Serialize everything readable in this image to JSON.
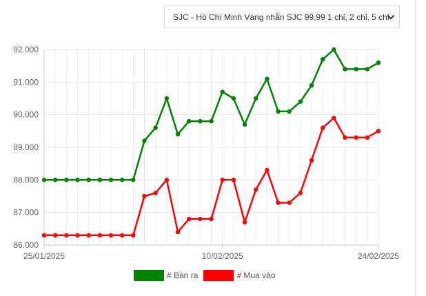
{
  "selector": {
    "selected": "SJC - Hồ Chí Minh Vàng nhẫn SJC 99,99 1 chỉ, 2 chỉ, 5 chỉ",
    "icon": "chevron-down-icon"
  },
  "legend": {
    "sell_label": "# Bán ra",
    "buy_label": "# Mua vào"
  },
  "chart_data": {
    "type": "line",
    "title": "",
    "xlabel": "",
    "ylabel": "",
    "x": [
      "25/01/2025",
      "26/01/2025",
      "27/01/2025",
      "28/01/2025",
      "29/01/2025",
      "30/01/2025",
      "31/01/2025",
      "01/02/2025",
      "02/02/2025",
      "03/02/2025",
      "04/02/2025",
      "05/02/2025",
      "06/02/2025",
      "07/02/2025",
      "08/02/2025",
      "09/02/2025",
      "10/02/2025",
      "11/02/2025",
      "12/02/2025",
      "13/02/2025",
      "14/02/2025",
      "15/02/2025",
      "16/02/2025",
      "17/02/2025",
      "18/02/2025",
      "19/02/2025",
      "20/02/2025",
      "21/02/2025",
      "22/02/2025",
      "23/02/2025",
      "24/02/2025"
    ],
    "x_tick_labels": [
      "25/01/2025",
      "10/02/2025",
      "24/02/2025"
    ],
    "x_tick_index": [
      0,
      16,
      30
    ],
    "y_tick_labels": [
      "86.000",
      "87.000",
      "88.000",
      "89.000",
      "90.000",
      "91.000",
      "92.000"
    ],
    "ylim": [
      86000,
      92000
    ],
    "grid": true,
    "legend_position": "bottom",
    "series": [
      {
        "name": "# Bán ra",
        "color": "#008000",
        "values": [
          88000,
          88000,
          88000,
          88000,
          88000,
          88000,
          88000,
          88000,
          88000,
          89200,
          89600,
          90500,
          89400,
          89800,
          89800,
          89800,
          90700,
          90500,
          89700,
          90500,
          91100,
          90100,
          90100,
          90400,
          90900,
          91700,
          92000,
          91400,
          91400,
          91400,
          91600
        ]
      },
      {
        "name": "# Mua vào",
        "color": "#ff0000",
        "values": [
          86300,
          86300,
          86300,
          86300,
          86300,
          86300,
          86300,
          86300,
          86300,
          87500,
          87600,
          88000,
          86400,
          86800,
          86800,
          86800,
          88000,
          88000,
          86700,
          87700,
          88300,
          87300,
          87300,
          87600,
          88600,
          89600,
          89900,
          89300,
          89300,
          89300,
          89500
        ]
      }
    ]
  }
}
